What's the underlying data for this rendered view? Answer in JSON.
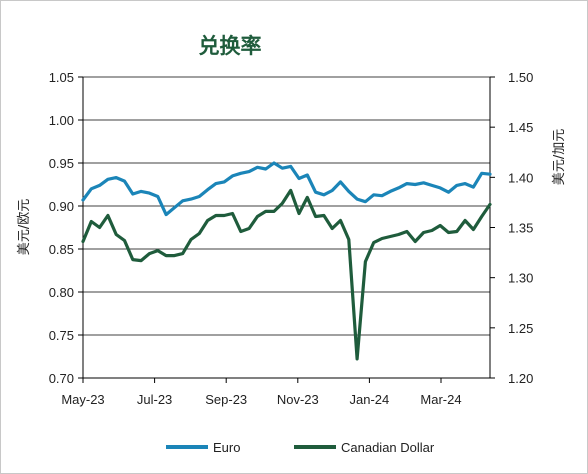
{
  "chart_data": {
    "type": "line",
    "title": "兑换率",
    "ylabel_left": "美元/欧元",
    "ylabel_right": "美元/加元",
    "x_tick_labels": [
      "May-23",
      "Jul-23",
      "Sep-23",
      "Nov-23",
      "Jan-24",
      "Mar-24"
    ],
    "ylim_left": [
      0.7,
      1.05
    ],
    "yticks_left": [
      "0.70",
      "0.75",
      "0.80",
      "0.85",
      "0.90",
      "0.95",
      "1.00",
      "1.05"
    ],
    "ylim_right": [
      1.2,
      1.5
    ],
    "yticks_right": [
      "1.20",
      "1.25",
      "1.30",
      "1.35",
      "1.40",
      "1.45",
      "1.50"
    ],
    "grid": "horizontal",
    "legend_position": "bottom",
    "series": [
      {
        "name": "Euro",
        "axis": "left",
        "color": "#1b85b8",
        "values": [
          0.907,
          0.92,
          0.924,
          0.931,
          0.933,
          0.929,
          0.914,
          0.917,
          0.915,
          0.911,
          0.89,
          0.898,
          0.906,
          0.908,
          0.911,
          0.919,
          0.926,
          0.928,
          0.935,
          0.938,
          0.94,
          0.945,
          0.943,
          0.95,
          0.944,
          0.946,
          0.932,
          0.936,
          0.916,
          0.913,
          0.918,
          0.928,
          0.917,
          0.908,
          0.905,
          0.913,
          0.912,
          0.917,
          0.921,
          0.926,
          0.925,
          0.927,
          0.924,
          0.921,
          0.916,
          0.924,
          0.926,
          0.922,
          0.938,
          0.937
        ]
      },
      {
        "name": "Canadian Dollar",
        "axis": "right",
        "color": "#1f5c3c",
        "values": [
          1.336,
          1.356,
          1.35,
          1.362,
          1.343,
          1.337,
          1.318,
          1.317,
          1.324,
          1.327,
          1.322,
          1.322,
          1.324,
          1.338,
          1.344,
          1.357,
          1.362,
          1.362,
          1.364,
          1.346,
          1.349,
          1.361,
          1.366,
          1.366,
          1.374,
          1.387,
          1.364,
          1.38,
          1.361,
          1.362,
          1.349,
          1.357,
          1.338,
          1.219,
          1.316,
          1.335,
          1.339,
          1.341,
          1.343,
          1.346,
          1.336,
          1.345,
          1.347,
          1.352,
          1.345,
          1.346,
          1.357,
          1.348,
          1.361,
          1.373
        ]
      }
    ]
  },
  "colors": {
    "title": "#1f5c3c",
    "euro": "#1b85b8",
    "cad": "#1f5c3c",
    "grid": "#000000"
  }
}
